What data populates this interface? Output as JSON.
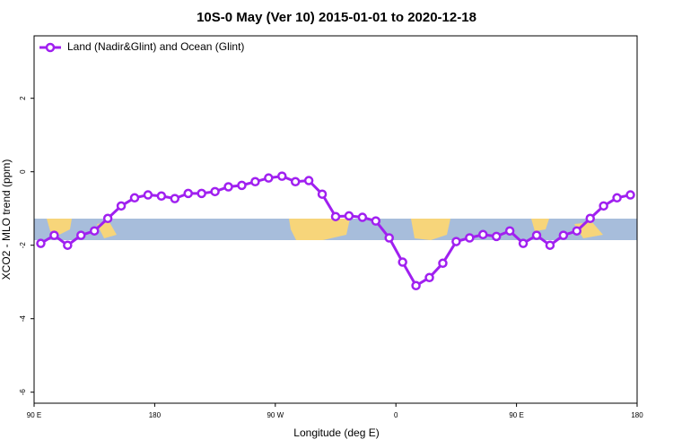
{
  "chart_data": {
    "type": "line",
    "title": "10S-0 May (Ver 10)   2015-01-01 to 2020-12-18",
    "xlabel": "Longitude (deg E)",
    "ylabel": "XCO2 - MLO trend (ppm)",
    "x": [
      95,
      105,
      115,
      125,
      135,
      145,
      155,
      165,
      175,
      185,
      195,
      205,
      215,
      225,
      235,
      245,
      255,
      265,
      275,
      285,
      295,
      305,
      315,
      325,
      335,
      345,
      355,
      365,
      375,
      385,
      395,
      405,
      415,
      425,
      435,
      445,
      455,
      465,
      475,
      485,
      495,
      505,
      515,
      525,
      535
    ],
    "series": [
      {
        "name": "Land (Nadir&Glint) and Ocean (Glint)",
        "color": "#a020f0",
        "values": [
          -1.95,
          -1.73,
          -2.0,
          -1.73,
          -1.61,
          -1.27,
          -0.93,
          -0.71,
          -0.63,
          -0.66,
          -0.73,
          -0.59,
          -0.59,
          -0.54,
          -0.41,
          -0.37,
          -0.27,
          -0.17,
          -0.12,
          -0.27,
          -0.24,
          -0.61,
          -1.22,
          -1.2,
          -1.24,
          -1.34,
          -1.8,
          -2.46,
          -3.1,
          -2.88,
          -2.49,
          -1.9,
          -1.8,
          -1.71,
          -1.76,
          -1.61,
          -1.95,
          -1.73,
          -2.0,
          -1.73,
          -1.61,
          -1.27,
          -0.93,
          -0.71,
          -0.63
        ]
      }
    ],
    "xlim": [
      90,
      540
    ],
    "xticks": [
      {
        "value": 90,
        "label": "90 E"
      },
      180,
      {
        "value": 270,
        "label": "90 W"
      },
      {
        "value": 360,
        "label": "0"
      },
      {
        "value": 450,
        "label": "90 E"
      },
      {
        "value": 540,
        "label": "180"
      }
    ],
    "ylim": [
      -6.3,
      3.7
    ],
    "yticks": [
      2,
      0,
      -2,
      -4,
      -6
    ],
    "legend": "top-left"
  }
}
